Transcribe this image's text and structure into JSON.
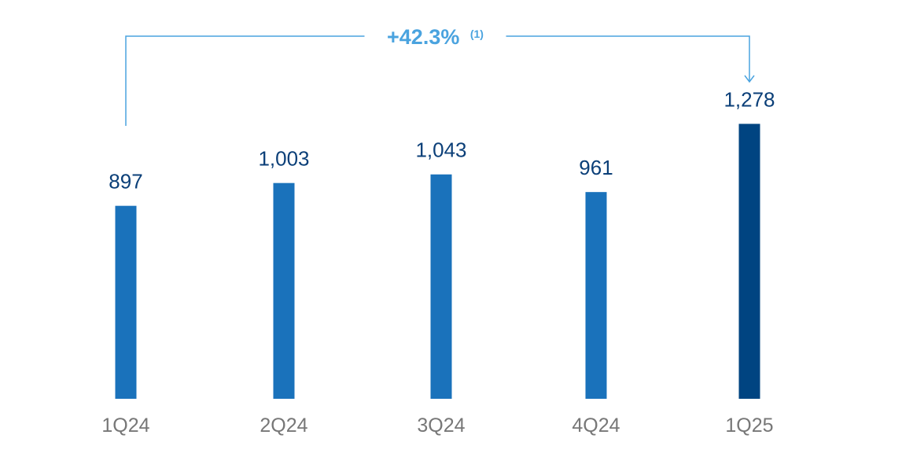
{
  "chart_data": {
    "type": "bar",
    "title": "",
    "xlabel": "",
    "ylabel": "",
    "categories": [
      "1Q24",
      "2Q24",
      "3Q24",
      "4Q24",
      "1Q25"
    ],
    "values": [
      897,
      1003,
      1043,
      961,
      1278
    ],
    "value_labels": [
      "897",
      "1,003",
      "1,043",
      "961",
      "1,278"
    ],
    "ylim": [
      0,
      1300
    ],
    "grid": false,
    "colors": {
      "bar": "#1a72bb",
      "highlight_bar": "#004481",
      "value_text": "#0b3f78",
      "category_text": "#777777",
      "annotation": "#4aa3df"
    },
    "highlight_index": 4,
    "annotation": {
      "text": "+42.3%",
      "note": "(1)",
      "from": "1Q24",
      "to": "1Q25"
    }
  }
}
